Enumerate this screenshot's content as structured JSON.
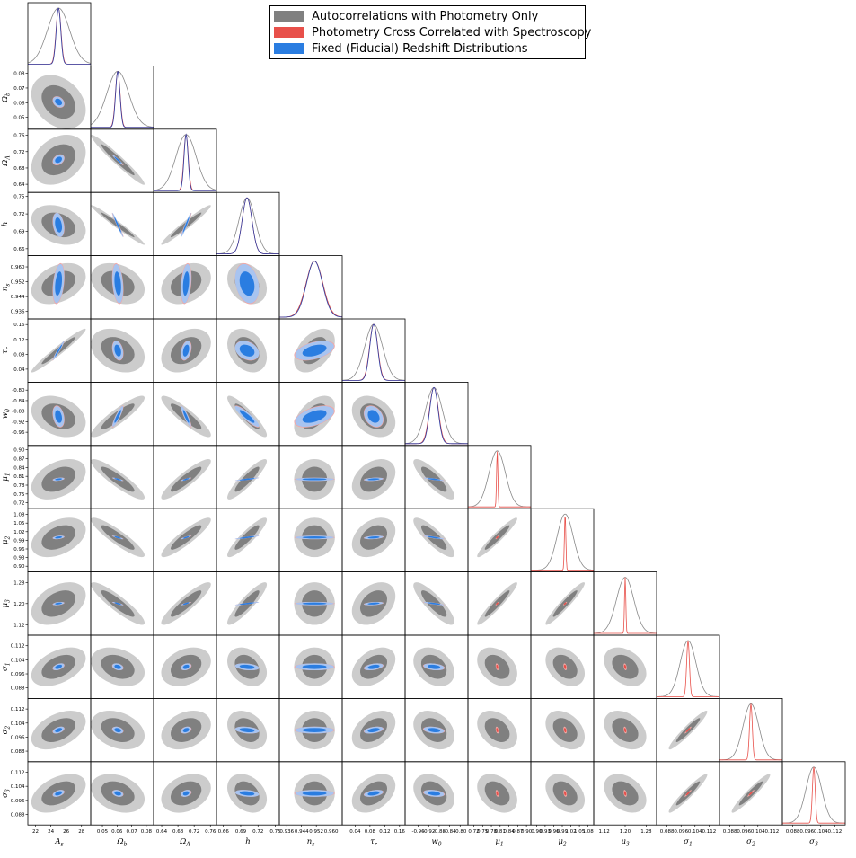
{
  "chart_data": {
    "type": "corner-triangle",
    "legend": [
      {
        "label": "Autocorrelations with Photometry Only",
        "color": "#808080"
      },
      {
        "label": "Photometry Cross Correlated with Spectroscopy",
        "color": "#e8504a"
      },
      {
        "label": "Fixed (Fiducial) Redshift Distributions",
        "color": "#2a7de1"
      }
    ],
    "series_styles": {
      "auto": {
        "outer": "#cccccc",
        "inner": "#808080",
        "line": "#888888"
      },
      "cross": {
        "outer": "#f3a8a5",
        "inner": "#e8504a",
        "line": "#e8504a"
      },
      "fixed": {
        "outer": "#a8c4f0",
        "inner": "#2a7de1",
        "line": "#2b3fa6"
      }
    },
    "parameters": [
      {
        "name": "A_s",
        "label": "A",
        "sub": "s",
        "range": [
          21,
          29.2
        ],
        "ticks": [
          22,
          24,
          26,
          28
        ],
        "tick_labels": [
          "22",
          "24",
          "26",
          "28"
        ],
        "fid": 25.0,
        "sd": {
          "auto": 1.45,
          "cross": 0.32,
          "fixed": 0.3
        }
      },
      {
        "name": "Omega_b",
        "label": "Ω",
        "sub": "b",
        "range": [
          0.042,
          0.085
        ],
        "ticks": [
          0.05,
          0.06,
          0.07,
          0.08
        ],
        "tick_labels": [
          "0.05",
          "0.06",
          "0.07",
          "0.08"
        ],
        "fid": 0.0605,
        "sd": {
          "auto": 0.0075,
          "cross": 0.0016,
          "fixed": 0.0015
        }
      },
      {
        "name": "Omega_Lambda",
        "label": "Ω",
        "sub": "Λ",
        "range": [
          0.62,
          0.775
        ],
        "ticks": [
          0.64,
          0.68,
          0.72,
          0.76
        ],
        "tick_labels": [
          "0.64",
          "0.68",
          "0.72",
          "0.76"
        ],
        "fid": 0.7,
        "sd": {
          "auto": 0.025,
          "cross": 0.0055,
          "fixed": 0.005
        }
      },
      {
        "name": "h",
        "label": "h",
        "sub": "",
        "range": [
          0.648,
          0.757
        ],
        "ticks": [
          0.66,
          0.69,
          0.72,
          0.75
        ],
        "tick_labels": [
          "0.66",
          "0.69",
          "0.72",
          "0.75"
        ],
        "fid": 0.701,
        "sd": {
          "auto": 0.014,
          "cross": 0.0085,
          "fixed": 0.0085
        }
      },
      {
        "name": "n_s",
        "label": "n",
        "sub": "s",
        "range": [
          0.932,
          0.966
        ],
        "ticks": [
          0.936,
          0.944,
          0.952,
          0.96
        ],
        "tick_labels": [
          "0.936",
          "0.944",
          "0.952",
          "0.960"
        ],
        "fid": 0.951,
        "sd": {
          "auto": 0.0045,
          "cross": 0.0045,
          "fixed": 0.0043
        }
      },
      {
        "name": "tau_r",
        "label": "τ",
        "sub": "r",
        "range": [
          0.005,
          0.175
        ],
        "ticks": [
          0.04,
          0.08,
          0.12,
          0.16
        ],
        "tick_labels": [
          "0.04",
          "0.08",
          "0.12",
          "0.16"
        ],
        "fid": 0.09,
        "sd": {
          "auto": 0.024,
          "cross": 0.011,
          "fixed": 0.0105
        }
      },
      {
        "name": "w_0",
        "label": "w",
        "sub": "0",
        "range": [
          -1.01,
          -0.77
        ],
        "ticks": [
          -0.96,
          -0.92,
          -0.88,
          -0.84,
          -0.8
        ],
        "tick_labels": [
          "-0.96",
          "-0.92",
          "-0.88",
          "-0.84",
          "-0.80"
        ],
        "fid": -0.9,
        "sd": {
          "auto": 0.032,
          "cross": 0.017,
          "fixed": 0.016
        }
      },
      {
        "name": "mu_1",
        "label": "μ",
        "sub": "1",
        "range": [
          0.7,
          0.915
        ],
        "ticks": [
          0.72,
          0.75,
          0.78,
          0.81,
          0.84,
          0.87,
          0.9
        ],
        "tick_labels": [
          "0.72",
          "0.75",
          "0.78",
          "0.81",
          "0.84",
          "0.87",
          "0.90"
        ],
        "fid": 0.8,
        "sd": {
          "auto": 0.028,
          "cross": 0.0022,
          "fixed": 0
        }
      },
      {
        "name": "mu_2",
        "label": "μ",
        "sub": "2",
        "range": [
          0.88,
          1.1
        ],
        "ticks": [
          0.9,
          0.93,
          0.96,
          0.99,
          1.02,
          1.05,
          1.08
        ],
        "tick_labels": [
          "0.90",
          "0.93",
          "0.96",
          "0.99",
          "1.02",
          "1.05",
          "1.08"
        ],
        "fid": 1.0,
        "sd": {
          "auto": 0.028,
          "cross": 0.0025,
          "fixed": 0
        }
      },
      {
        "name": "mu_3",
        "label": "μ",
        "sub": "3",
        "range": [
          1.08,
          1.32
        ],
        "ticks": [
          1.12,
          1.2,
          1.28
        ],
        "tick_labels": [
          "1.12",
          "1.20",
          "1.28"
        ],
        "fid": 1.2,
        "sd": {
          "auto": 0.033,
          "cross": 0.0025,
          "fixed": 0
        }
      },
      {
        "name": "sigma_1",
        "label": "σ",
        "sub": "1",
        "range": [
          0.082,
          0.118
        ],
        "ticks": [
          0.088,
          0.096,
          0.104,
          0.112
        ],
        "tick_labels": [
          "0.088",
          "0.096",
          "0.104",
          "0.112"
        ],
        "fid": 0.1,
        "sd": {
          "auto": 0.0045,
          "cross": 0.0008,
          "fixed": 0
        }
      },
      {
        "name": "sigma_2",
        "label": "σ",
        "sub": "2",
        "range": [
          0.082,
          0.118
        ],
        "ticks": [
          0.088,
          0.096,
          0.104,
          0.112
        ],
        "tick_labels": [
          "0.088",
          "0.096",
          "0.104",
          "0.112"
        ],
        "fid": 0.1,
        "sd": {
          "auto": 0.0045,
          "cross": 0.0008,
          "fixed": 0
        }
      },
      {
        "name": "sigma_3",
        "label": "σ",
        "sub": "3",
        "range": [
          0.082,
          0.118
        ],
        "ticks": [
          0.088,
          0.096,
          0.104,
          0.112
        ],
        "tick_labels": [
          "0.088",
          "0.096",
          "0.104",
          "0.112"
        ],
        "fid": 0.1,
        "sd": {
          "auto": 0.0045,
          "cross": 0.0008,
          "fixed": 0
        }
      }
    ],
    "correlations": [
      [
        1,
        2,
        -0.3
      ],
      [
        1,
        3,
        0.3
      ],
      [
        1,
        4,
        -0.3
      ],
      [
        1,
        5,
        0.35
      ],
      [
        1,
        6,
        0.97
      ],
      [
        1,
        7,
        -0.3
      ],
      [
        1,
        8,
        0.4
      ],
      [
        1,
        9,
        0.4
      ],
      [
        1,
        10,
        0.4
      ],
      [
        1,
        11,
        0.45
      ],
      [
        1,
        12,
        0.45
      ],
      [
        1,
        13,
        0.45
      ],
      [
        2,
        3,
        -0.97
      ],
      [
        2,
        4,
        -0.98
      ],
      [
        2,
        5,
        -0.3
      ],
      [
        2,
        6,
        -0.3
      ],
      [
        2,
        7,
        0.9
      ],
      [
        2,
        8,
        -0.9
      ],
      [
        2,
        9,
        -0.9
      ],
      [
        2,
        10,
        -0.9
      ],
      [
        2,
        11,
        -0.3
      ],
      [
        2,
        12,
        -0.3
      ],
      [
        2,
        13,
        -0.3
      ],
      [
        3,
        4,
        0.97
      ],
      [
        3,
        5,
        0.3
      ],
      [
        3,
        6,
        0.35
      ],
      [
        3,
        7,
        -0.9
      ],
      [
        3,
        8,
        0.9
      ],
      [
        3,
        9,
        0.9
      ],
      [
        3,
        10,
        0.9
      ],
      [
        3,
        11,
        0.3
      ],
      [
        3,
        12,
        0.3
      ],
      [
        3,
        13,
        0.3
      ],
      [
        4,
        5,
        -0.25
      ],
      [
        4,
        6,
        -0.3
      ],
      [
        4,
        7,
        -0.9
      ],
      [
        4,
        8,
        0.9
      ],
      [
        4,
        9,
        0.9
      ],
      [
        4,
        10,
        0.9
      ],
      [
        4,
        11,
        -0.3
      ],
      [
        4,
        12,
        -0.3
      ],
      [
        4,
        13,
        -0.3
      ],
      [
        5,
        6,
        0.45
      ],
      [
        5,
        7,
        0.5
      ],
      [
        5,
        8,
        0.0
      ],
      [
        5,
        9,
        0.0
      ],
      [
        5,
        10,
        0.0
      ],
      [
        5,
        11,
        0.0
      ],
      [
        5,
        12,
        0.0
      ],
      [
        5,
        13,
        0.0
      ],
      [
        6,
        7,
        -0.3
      ],
      [
        6,
        8,
        0.35
      ],
      [
        6,
        9,
        0.35
      ],
      [
        6,
        10,
        0.35
      ],
      [
        6,
        11,
        0.4
      ],
      [
        6,
        12,
        0.4
      ],
      [
        6,
        13,
        0.4
      ],
      [
        7,
        8,
        -0.85
      ],
      [
        7,
        9,
        -0.85
      ],
      [
        7,
        10,
        -0.85
      ],
      [
        7,
        11,
        -0.3
      ],
      [
        7,
        12,
        -0.3
      ],
      [
        7,
        13,
        -0.3
      ],
      [
        8,
        9,
        0.95
      ],
      [
        8,
        10,
        0.95
      ],
      [
        8,
        11,
        -0.35
      ],
      [
        8,
        12,
        -0.35
      ],
      [
        8,
        13,
        -0.35
      ],
      [
        9,
        10,
        0.95
      ],
      [
        9,
        11,
        -0.35
      ],
      [
        9,
        12,
        -0.35
      ],
      [
        9,
        13,
        -0.35
      ],
      [
        10,
        11,
        -0.35
      ],
      [
        10,
        12,
        -0.35
      ],
      [
        10,
        13,
        -0.35
      ],
      [
        11,
        12,
        0.95
      ],
      [
        11,
        13,
        0.95
      ],
      [
        12,
        13,
        0.95
      ]
    ]
  }
}
